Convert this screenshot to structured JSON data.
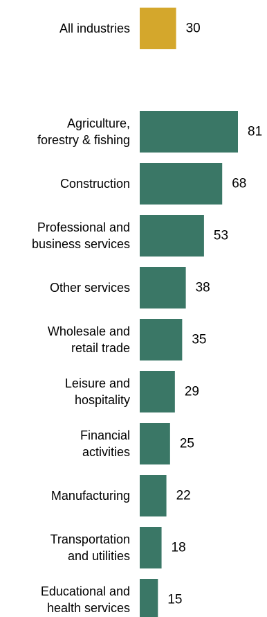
{
  "chart_data": {
    "type": "bar",
    "orientation": "horizontal",
    "title": "",
    "xlabel": "",
    "ylabel": "",
    "grid": false,
    "legend": "none",
    "xlim": [
      0,
      81
    ],
    "colors": {
      "highlight": "#D4A72C",
      "bar": "#3A7766"
    },
    "categories": [
      [
        "All industries"
      ],
      [
        "Agriculture,",
        "forestry & fishing"
      ],
      [
        "Construction"
      ],
      [
        "Professional and",
        "business services"
      ],
      [
        "Other services"
      ],
      [
        "Wholesale and",
        "retail trade"
      ],
      [
        "Leisure and",
        "hospitality"
      ],
      [
        "Financial",
        "activities"
      ],
      [
        "Manufacturing"
      ],
      [
        "Transportation",
        "and utilities"
      ],
      [
        "Educational and",
        "health services"
      ]
    ],
    "values": [
      30,
      81,
      68,
      53,
      38,
      35,
      29,
      25,
      22,
      18,
      15
    ],
    "highlight_index": 0
  }
}
